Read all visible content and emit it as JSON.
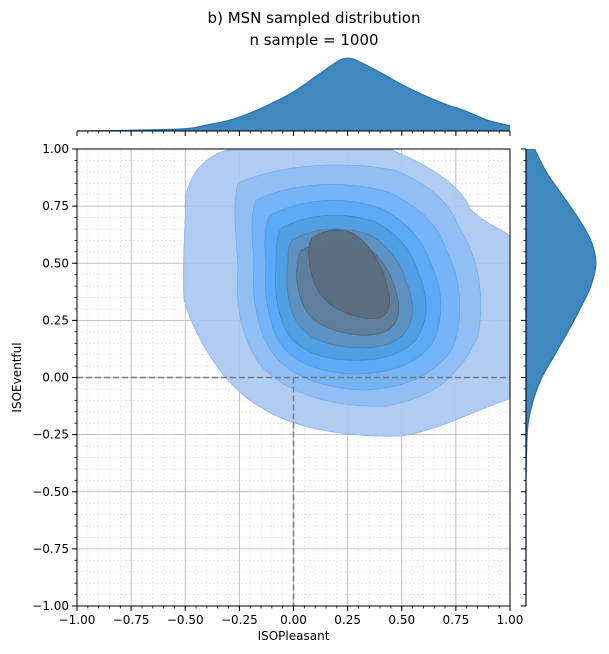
{
  "chart_data": {
    "type": "kde-joint",
    "title_lines": [
      "b) MSN sampled distribution",
      "n sample = 1000"
    ],
    "xlabel": "ISOPleasant",
    "ylabel": "ISOEventful",
    "xlim": [
      -1.0,
      1.0
    ],
    "ylim": [
      -1.0,
      1.0
    ],
    "x_ticks": [
      "−1.00",
      "−0.75",
      "−0.50",
      "−0.25",
      "0.00",
      "0.25",
      "0.50",
      "0.75",
      "1.00"
    ],
    "y_ticks": [
      "−1.00",
      "−0.75",
      "−0.50",
      "−0.25",
      "0.00",
      "0.25",
      "0.50",
      "0.75",
      "1.00"
    ],
    "x_tick_values": [
      -1,
      -0.75,
      -0.5,
      -0.25,
      0,
      0.25,
      0.5,
      0.75,
      1
    ],
    "y_tick_values": [
      -1,
      -0.75,
      -0.5,
      -0.25,
      0,
      0.25,
      0.5,
      0.75,
      1
    ],
    "grid": true,
    "minor_grid": true,
    "reference_lines": {
      "x": 0,
      "y": 0,
      "style": "dashed"
    },
    "sample_size": 1000,
    "density_peak": {
      "x": 0.22,
      "y": 0.5
    },
    "colors": {
      "outer": "#a9c6f2",
      "mid": "#5aaef5",
      "inner": "#5a6f82",
      "marginal": "#3f88bf",
      "marginal_edge": "#2b6fa8"
    },
    "marginal_x": {
      "x": [
        -1.0,
        -0.75,
        -0.5,
        -0.4,
        -0.3,
        -0.2,
        -0.1,
        0.0,
        0.1,
        0.2,
        0.25,
        0.3,
        0.4,
        0.5,
        0.6,
        0.7,
        0.8,
        0.9,
        1.0
      ],
      "density": [
        0.0,
        0.01,
        0.03,
        0.08,
        0.14,
        0.24,
        0.37,
        0.52,
        0.72,
        0.92,
        0.97,
        0.93,
        0.78,
        0.62,
        0.48,
        0.36,
        0.26,
        0.14,
        0.07
      ]
    },
    "marginal_y": {
      "y": [
        -1.0,
        -0.5,
        -0.3,
        -0.2,
        -0.1,
        0.0,
        0.1,
        0.2,
        0.3,
        0.4,
        0.5,
        0.6,
        0.7,
        0.8,
        0.9,
        1.0
      ],
      "density": [
        0.0,
        0.0,
        0.01,
        0.03,
        0.1,
        0.22,
        0.4,
        0.58,
        0.75,
        0.9,
        0.97,
        0.9,
        0.72,
        0.5,
        0.28,
        0.12
      ]
    }
  }
}
